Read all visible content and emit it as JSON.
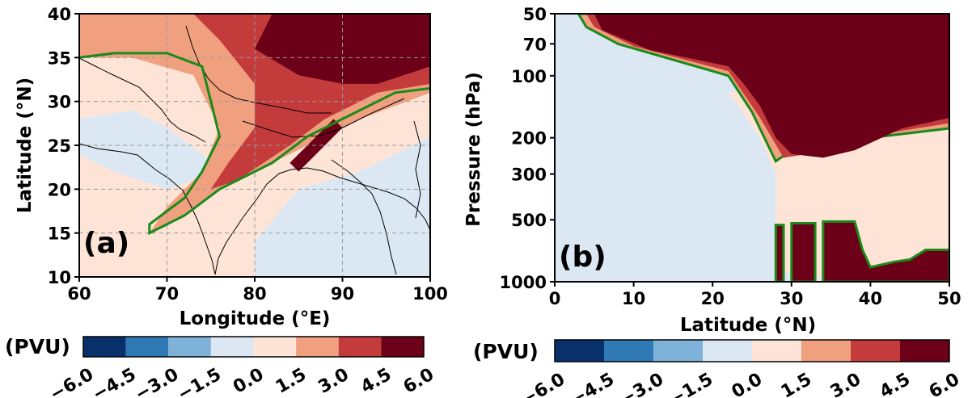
{
  "chart_data": [
    {
      "type": "heatmap",
      "panel_label": "(a)",
      "xlabel": "Longitude (°E)",
      "ylabel": "Latitude (°N)",
      "xlim": [
        60,
        100
      ],
      "ylim": [
        10,
        40
      ],
      "xticks": [
        "60",
        "70",
        "80",
        "90",
        "100"
      ],
      "yticks": [
        "10",
        "15",
        "20",
        "25",
        "30",
        "35",
        "40"
      ],
      "grid": true,
      "colorbar": {
        "unit": "(PVU)",
        "levels": [
          "−6.0",
          "−4.5",
          "−3.0",
          "−1.5",
          "0.0",
          "1.5",
          "3.0",
          "4.5",
          "6.0"
        ],
        "colors": [
          "#08306b",
          "#2f79b5",
          "#7fb2d8",
          "#dbe8f3",
          "#fde4d6",
          "#f0a07f",
          "#c43b3c",
          "#6b0018"
        ]
      },
      "contour_color": "#1a8a1a",
      "regions": [
        {
          "level": "-1.5 to 0",
          "points": [
            [
              60,
              28
            ],
            [
              66,
              29
            ],
            [
              70,
              27
            ],
            [
              74,
              24
            ],
            [
              76,
              22
            ],
            [
              70,
              20
            ],
            [
              64,
              22
            ],
            [
              60,
              24
            ]
          ]
        },
        {
          "level": "-1.5 to 0",
          "points": [
            [
              80,
              10
            ],
            [
              100,
              10
            ],
            [
              100,
              26
            ],
            [
              92,
              22
            ],
            [
              85,
              20
            ],
            [
              80,
              14
            ]
          ]
        },
        {
          "level": "1.5 to 3",
          "points": [
            [
              60,
              35
            ],
            [
              60,
              40
            ],
            [
              76,
              40
            ],
            [
              88,
              35
            ],
            [
              100,
              35
            ],
            [
              100,
              31
            ],
            [
              92,
              28
            ],
            [
              84,
              24
            ],
            [
              76,
              20
            ],
            [
              72,
              17
            ],
            [
              68,
              15
            ],
            [
              70,
              18
            ],
            [
              74,
              22
            ],
            [
              76,
              27
            ],
            [
              73,
              33
            ],
            [
              66,
              35
            ]
          ]
        },
        {
          "level": "3 to 4.5",
          "points": [
            [
              74,
              40
            ],
            [
              90,
              40
            ],
            [
              100,
              35
            ],
            [
              100,
              32
            ],
            [
              94,
              31
            ],
            [
              88,
              28
            ],
            [
              84,
              25
            ],
            [
              78,
              21
            ],
            [
              75,
              20
            ],
            [
              77,
              23
            ],
            [
              80,
              27
            ],
            [
              80,
              32
            ],
            [
              76,
              37
            ],
            [
              73,
              40
            ]
          ]
        },
        {
          "level": "4.5 to 6",
          "points": [
            [
              82,
              40
            ],
            [
              100,
              40
            ],
            [
              100,
              34
            ],
            [
              94,
              32
            ],
            [
              90,
              32
            ],
            [
              85,
              33
            ],
            [
              80,
              36
            ]
          ]
        },
        {
          "level": "4.5 to 6",
          "points": [
            [
              84,
              23
            ],
            [
              86,
              25
            ],
            [
              89,
              28
            ],
            [
              90,
              27
            ],
            [
              87,
              24
            ],
            [
              85,
              22
            ]
          ]
        }
      ],
      "contour_1.5": [
        [
          60,
          35
        ],
        [
          64,
          35.5
        ],
        [
          70,
          35.5
        ],
        [
          74,
          34
        ],
        [
          75,
          30
        ],
        [
          76,
          26
        ],
        [
          74,
          22
        ],
        [
          72,
          19
        ],
        [
          68,
          16
        ],
        [
          68,
          15
        ],
        [
          72,
          17
        ],
        [
          76,
          20
        ],
        [
          82,
          23
        ],
        [
          86,
          26
        ],
        [
          90,
          28
        ],
        [
          96,
          31
        ],
        [
          100,
          31.5
        ]
      ]
    },
    {
      "type": "heatmap",
      "panel_label": "(b)",
      "xlabel": "Latitude (°N)",
      "ylabel": "Pressure (hPa)",
      "xlim": [
        0,
        50
      ],
      "ylim": [
        1000,
        50
      ],
      "yscale": "log",
      "xticks": [
        "0",
        "10",
        "20",
        "30",
        "40",
        "50"
      ],
      "yticks": [
        "50",
        "70",
        "100",
        "200",
        "300",
        "500",
        "1000"
      ],
      "grid": false,
      "colorbar": {
        "unit": "(PVU)",
        "levels": [
          "−6.0",
          "−4.5",
          "−3.0",
          "−1.5",
          "0.0",
          "1.5",
          "3.0",
          "4.5",
          "6.0"
        ],
        "colors": [
          "#08306b",
          "#2f79b5",
          "#7fb2d8",
          "#dbe8f3",
          "#fde4d6",
          "#f0a07f",
          "#c43b3c",
          "#6b0018"
        ]
      },
      "contour_color": "#1a8a1a",
      "regions": [
        {
          "level": "-1.5 to 0",
          "points": [
            [
              0,
              50
            ],
            [
              2,
              50
            ],
            [
              4,
              70
            ],
            [
              10,
              80
            ],
            [
              20,
              90
            ],
            [
              22,
              120
            ],
            [
              26,
              200
            ],
            [
              28,
              280
            ],
            [
              28,
              500
            ],
            [
              30,
              700
            ],
            [
              26,
              900
            ],
            [
              0,
              1000
            ]
          ]
        },
        {
          "level": "0 to 1.5",
          "points": [
            [
              22,
              120
            ],
            [
              50,
              120
            ],
            [
              50,
              1000
            ],
            [
              40,
              1000
            ],
            [
              30,
              950
            ],
            [
              28,
              800
            ],
            [
              28,
              300
            ],
            [
              26,
              200
            ]
          ]
        },
        {
          "level": "1.5 to 3",
          "points": [
            [
              3,
              50
            ],
            [
              50,
              50
            ],
            [
              50,
              180
            ],
            [
              40,
              200
            ],
            [
              30,
              230
            ],
            [
              28,
              260
            ],
            [
              25,
              150
            ],
            [
              22,
              100
            ],
            [
              8,
              70
            ],
            [
              4,
              58
            ]
          ]
        },
        {
          "level": "3 to 4.5",
          "points": [
            [
              4,
              50
            ],
            [
              50,
              50
            ],
            [
              50,
              170
            ],
            [
              42,
              190
            ],
            [
              32,
              240
            ],
            [
              29,
              250
            ],
            [
              26,
              160
            ],
            [
              22,
              95
            ],
            [
              10,
              72
            ],
            [
              5,
              58
            ]
          ]
        },
        {
          "level": "4.5 to 6",
          "points": [
            [
              5,
              50
            ],
            [
              50,
              50
            ],
            [
              50,
              160
            ],
            [
              44,
              180
            ],
            [
              38,
              230
            ],
            [
              34,
              250
            ],
            [
              30,
              240
            ],
            [
              28,
              200
            ],
            [
              26,
              140
            ],
            [
              24,
              110
            ],
            [
              22,
              90
            ],
            [
              12,
              75
            ],
            [
              6,
              60
            ]
          ]
        },
        {
          "level": "4.5 to 6",
          "points": [
            [
              28,
              530
            ],
            [
              29,
              530
            ],
            [
              29,
              1000
            ],
            [
              28,
              1000
            ]
          ]
        },
        {
          "level": "4.5 to 6",
          "points": [
            [
              30,
              520
            ],
            [
              33,
              520
            ],
            [
              33,
              1000
            ],
            [
              30,
              1000
            ]
          ]
        },
        {
          "level": "4.5 to 6",
          "points": [
            [
              34,
              510
            ],
            [
              38,
              510
            ],
            [
              39,
              700
            ],
            [
              40,
              850
            ],
            [
              43,
              800
            ],
            [
              45,
              780
            ],
            [
              47,
              700
            ],
            [
              50,
              700
            ],
            [
              50,
              1000
            ],
            [
              34,
              1000
            ]
          ]
        }
      ]
    }
  ]
}
